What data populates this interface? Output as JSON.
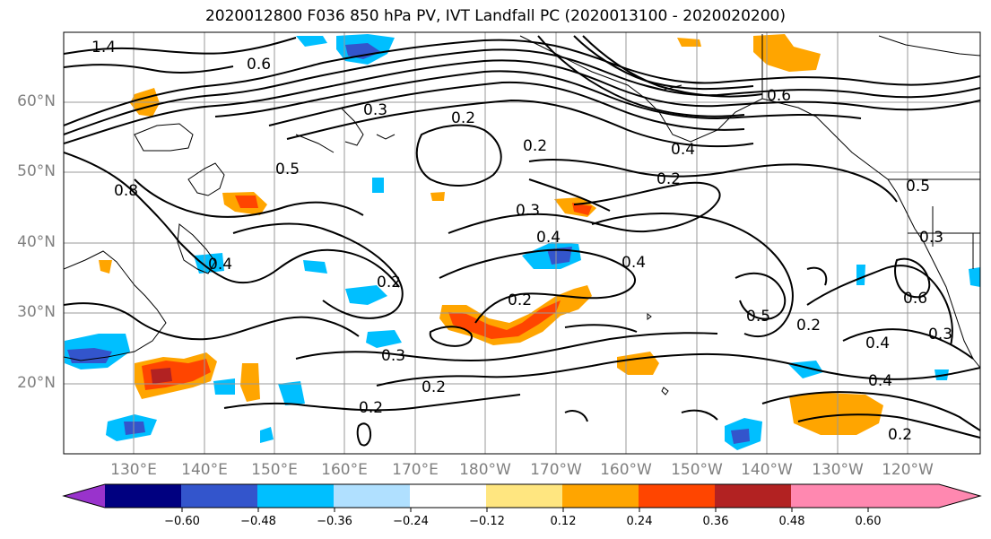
{
  "title": "2020012800 F036 850 hPa PV, IVT Landfall PC (2020013100 - 2020020200)",
  "lat_labels": [
    "60°N",
    "50°N",
    "40°N",
    "30°N",
    "20°N"
  ],
  "lon_labels": [
    "130°E",
    "140°E",
    "150°E",
    "160°E",
    "170°E",
    "180°W",
    "170°W",
    "160°W",
    "150°W",
    "140°W",
    "130°W",
    "120°W"
  ],
  "contour_labels": [
    "1.4",
    "0.6",
    "0.5",
    "0.3",
    "0.2",
    "0.2",
    "0.2",
    "0.8",
    "0.4",
    "0.5",
    "0.6",
    "0.3",
    "0.4",
    "0.4",
    "0.2",
    "0.2",
    "0.4",
    "0.6",
    "0.3",
    "0.2",
    "0.3",
    "0.4",
    "0.2",
    "0.5",
    "0.2",
    "0.4",
    "0.2",
    "0.3"
  ],
  "colorbar": {
    "ticks": [
      "−0.60",
      "−0.48",
      "−0.36",
      "−0.24",
      "−0.12",
      "0.12",
      "0.24",
      "0.36",
      "0.48",
      "0.60"
    ],
    "colors": [
      "#9933cc",
      "#000080",
      "#3355cc",
      "#00bfff",
      "#b0e0ff",
      "#ffffff",
      "#ffe680",
      "#ffa500",
      "#ff4500",
      "#b22222",
      "#ff88b0"
    ]
  },
  "colors": {
    "negative_strong": "#3355cc",
    "negative": "#00bfff",
    "negative_light": "#b0e0ff",
    "positive_light": "#ffe680",
    "positive": "#ffa500",
    "positive_strong": "#ff4500",
    "grid": "#999999",
    "contour": "#000000"
  }
}
